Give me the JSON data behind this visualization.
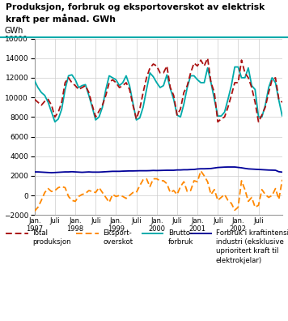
{
  "title": "Produksjon, forbruk og eksportoverskot av elektrisk\nkraft per månad. GWh",
  "ylabel": "GWh",
  "ylim": [
    -2000,
    16000
  ],
  "yticks": [
    -2000,
    0,
    2000,
    4000,
    6000,
    8000,
    10000,
    12000,
    14000,
    16000
  ],
  "background_color": "#ffffff",
  "line_teal_color": "#00AAAA",
  "line_red_color": "#AA1111",
  "line_orange_color": "#FF8800",
  "line_blue_color": "#000099",
  "total_produksjon": [
    9800,
    9500,
    9200,
    9600,
    9800,
    9200,
    8000,
    8500,
    9500,
    11500,
    12000,
    11500,
    11200,
    10800,
    11000,
    11200,
    10500,
    9200,
    8000,
    8600,
    9200,
    10200,
    11500,
    11800,
    11500,
    11000,
    11200,
    11500,
    10800,
    9200,
    7800,
    8800,
    10500,
    12000,
    13000,
    13400,
    13200,
    12500,
    12500,
    13200,
    11000,
    10200,
    8200,
    8800,
    10500,
    11200,
    12500,
    13500,
    13200,
    13800,
    13200,
    14000,
    11500,
    10500,
    7500,
    7800,
    8000,
    9000,
    10200,
    11500,
    11500,
    13800,
    12500,
    12000,
    11000,
    9500,
    7500,
    8200,
    9000,
    10500,
    11800,
    12000,
    9800,
    9500
  ],
  "brutto_forbruk": [
    11700,
    11000,
    10500,
    10200,
    9500,
    8500,
    7500,
    7800,
    8800,
    10800,
    12200,
    12300,
    11800,
    11000,
    11200,
    11300,
    10200,
    9000,
    7700,
    8000,
    9000,
    10800,
    12200,
    12000,
    11800,
    11200,
    11500,
    12200,
    11200,
    9400,
    7700,
    7900,
    9000,
    10800,
    12500,
    12100,
    11500,
    11000,
    11200,
    12300,
    10900,
    9800,
    8200,
    8000,
    9300,
    11000,
    12200,
    12200,
    11800,
    11500,
    11500,
    13000,
    11500,
    9800,
    8100,
    8100,
    8500,
    9800,
    11200,
    13100,
    13100,
    12000,
    12000,
    13000,
    11200,
    10800,
    8000,
    8000,
    9200,
    11000,
    12000,
    11500,
    9700,
    8100
  ],
  "eksport_overskot": [
    -1600,
    -1200,
    -500,
    300,
    700,
    400,
    500,
    800,
    900,
    800,
    -100,
    -500,
    -600,
    -100,
    100,
    200,
    500,
    400,
    300,
    800,
    300,
    -200,
    -700,
    100,
    -100,
    0,
    -100,
    -300,
    0,
    300,
    300,
    1000,
    1600,
    1700,
    900,
    1700,
    1700,
    1500,
    1500,
    1200,
    300,
    500,
    100,
    900,
    1400,
    400,
    500,
    1500,
    1400,
    2500,
    2000,
    1400,
    100,
    600,
    -500,
    -200,
    100,
    -500,
    -800,
    -1500,
    -1200,
    1500,
    600,
    -600,
    -200,
    -1200,
    -1000,
    600,
    100,
    -200,
    0,
    700,
    -400,
    1600
  ],
  "forbruk_kraftintensiv": [
    2400,
    2400,
    2380,
    2360,
    2340,
    2320,
    2340,
    2360,
    2380,
    2400,
    2400,
    2420,
    2400,
    2380,
    2360,
    2380,
    2400,
    2380,
    2380,
    2380,
    2400,
    2420,
    2440,
    2460,
    2460,
    2460,
    2480,
    2490,
    2500,
    2500,
    2510,
    2520,
    2520,
    2520,
    2530,
    2550,
    2540,
    2550,
    2560,
    2570,
    2570,
    2570,
    2600,
    2600,
    2620,
    2620,
    2640,
    2650,
    2700,
    2720,
    2720,
    2730,
    2750,
    2800,
    2850,
    2870,
    2890,
    2900,
    2900,
    2900,
    2860,
    2820,
    2760,
    2710,
    2690,
    2670,
    2650,
    2630,
    2610,
    2590,
    2580,
    2570,
    2420,
    2380
  ],
  "xtick_labels": [
    "Jan.\n1997",
    "Juli",
    "Jan.\n1998",
    "Juli",
    "Jan.\n1999",
    "Juli",
    "Jan.\n2000",
    "Juli",
    "Jan.\n2001",
    "Juli",
    "Jan.\n2002",
    "Juli"
  ],
  "xtick_positions": [
    0,
    6,
    12,
    18,
    24,
    30,
    36,
    42,
    48,
    54,
    60,
    66
  ]
}
